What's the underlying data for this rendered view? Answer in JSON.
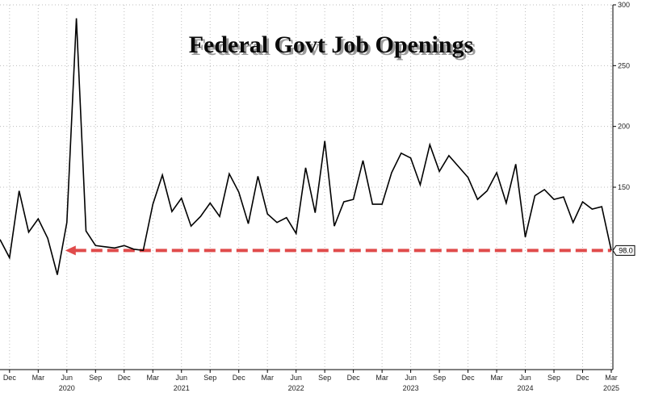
{
  "chart_data": {
    "type": "line",
    "title": "Federal Govt Job Openings",
    "xlabel": "",
    "ylabel": "",
    "ylim": [
      0,
      300
    ],
    "yticks": [
      150,
      200,
      250,
      300
    ],
    "grid": true,
    "legend": "none",
    "x": [
      "2019-11",
      "2019-12",
      "2020-01",
      "2020-02",
      "2020-03",
      "2020-04",
      "2020-05",
      "2020-06",
      "2020-07",
      "2020-08",
      "2020-09",
      "2020-10",
      "2020-11",
      "2020-12",
      "2021-01",
      "2021-02",
      "2021-03",
      "2021-04",
      "2021-05",
      "2021-06",
      "2021-07",
      "2021-08",
      "2021-09",
      "2021-10",
      "2021-11",
      "2021-12",
      "2022-01",
      "2022-02",
      "2022-03",
      "2022-04",
      "2022-05",
      "2022-06",
      "2022-07",
      "2022-08",
      "2022-09",
      "2022-10",
      "2022-11",
      "2022-12",
      "2023-01",
      "2023-02",
      "2023-03",
      "2023-04",
      "2023-05",
      "2023-06",
      "2023-07",
      "2023-08",
      "2023-09",
      "2023-10",
      "2023-11",
      "2023-12",
      "2024-01",
      "2024-02",
      "2024-03",
      "2024-04",
      "2024-05",
      "2024-06",
      "2024-07",
      "2024-08",
      "2024-09",
      "2024-10",
      "2024-11",
      "2024-12",
      "2025-01",
      "2025-02",
      "2025-03"
    ],
    "series": [
      {
        "values": [
          107,
          92,
          147,
          113,
          124,
          108,
          78,
          121,
          289,
          114,
          102,
          101,
          100,
          102,
          99,
          98,
          136,
          160,
          130,
          141,
          118,
          126,
          137,
          126,
          161,
          146,
          120,
          159,
          128,
          121,
          125,
          112,
          166,
          129,
          188,
          118,
          138,
          140,
          172,
          136,
          136,
          162,
          178,
          174,
          152,
          185,
          163,
          176,
          167,
          158,
          140,
          147,
          162,
          137,
          169,
          109,
          143,
          148,
          140,
          142,
          121,
          138,
          132,
          134,
          98
        ]
      }
    ],
    "reference_line": {
      "value": 98
    },
    "last_value_label": "98.0",
    "x_tick_labels": [
      {
        "date": "2019-12",
        "label": "Dec"
      },
      {
        "date": "2020-03",
        "label": "Mar"
      },
      {
        "date": "2020-06",
        "label": "Jun"
      },
      {
        "date": "2020-09",
        "label": "Sep"
      },
      {
        "date": "2020-12",
        "label": "Dec"
      },
      {
        "date": "2021-03",
        "label": "Mar"
      },
      {
        "date": "2021-06",
        "label": "Jun"
      },
      {
        "date": "2021-09",
        "label": "Sep"
      },
      {
        "date": "2021-12",
        "label": "Dec"
      },
      {
        "date": "2022-03",
        "label": "Mar"
      },
      {
        "date": "2022-06",
        "label": "Jun"
      },
      {
        "date": "2022-09",
        "label": "Sep"
      },
      {
        "date": "2022-12",
        "label": "Dec"
      },
      {
        "date": "2023-03",
        "label": "Mar"
      },
      {
        "date": "2023-06",
        "label": "Jun"
      },
      {
        "date": "2023-09",
        "label": "Sep"
      },
      {
        "date": "2023-12",
        "label": "Dec"
      },
      {
        "date": "2024-03",
        "label": "Mar"
      },
      {
        "date": "2024-06",
        "label": "Jun"
      },
      {
        "date": "2024-09",
        "label": "Sep"
      },
      {
        "date": "2024-12",
        "label": "Dec"
      },
      {
        "date": "2025-03",
        "label": "Mar"
      }
    ],
    "x_year_labels": [
      {
        "date": "2020-06",
        "label": "2020"
      },
      {
        "date": "2021-06",
        "label": "2021"
      },
      {
        "date": "2022-06",
        "label": "2022"
      },
      {
        "date": "2023-06",
        "label": "2023"
      },
      {
        "date": "2024-06",
        "label": "2024"
      },
      {
        "date": "2025-03",
        "label": "2025"
      }
    ],
    "colors": {
      "line": "#000000",
      "reference_line": "#e04b4b",
      "grid": "#bdbdbd"
    }
  }
}
